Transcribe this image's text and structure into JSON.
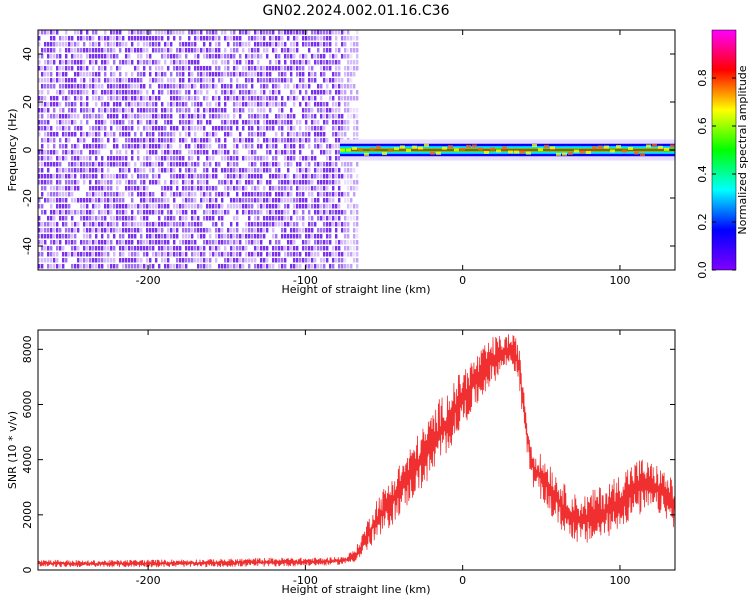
{
  "figure_title": "GN02.2024.002.01.16.C36",
  "colors": {
    "spectrogram_noise": "#7b2ff0",
    "spectrogram_noise_light": "#d6bcfa",
    "snr_line": "#f03030",
    "axis": "#000000"
  },
  "chart_data": [
    {
      "type": "heatmap",
      "title": "",
      "xlabel": "Height of straight line (km)",
      "ylabel": "Frequency (Hz)",
      "xlim": [
        -270,
        135
      ],
      "ylim": [
        -50,
        50
      ],
      "xticks": [
        -200,
        -100,
        0,
        100
      ],
      "yticks": [
        -40,
        -20,
        0,
        20,
        40
      ],
      "noise_region_x": [
        -270,
        -67
      ],
      "signal_region_x": [
        -78,
        135
      ],
      "signal_center_hz": 0,
      "signal_halfwidth_hz": 2,
      "grid": false,
      "colorbar": {
        "label": "Normalized spectral amplitude",
        "range": [
          0.0,
          1.0
        ],
        "ticks": [
          0.0,
          0.2,
          0.4,
          0.6,
          0.8
        ],
        "colormap": [
          "#ff00ff",
          "#ff0000",
          "#ffff00",
          "#00ff00",
          "#00ffff",
          "#0000ff",
          "#8000ff"
        ]
      }
    },
    {
      "type": "line",
      "title": "",
      "xlabel": "Height of straight line (km)",
      "ylabel": "SNR (10 * v/v)",
      "xlim": [
        -270,
        135
      ],
      "ylim": [
        0,
        8700
      ],
      "xticks": [
        -200,
        -100,
        0,
        100
      ],
      "yticks": [
        0,
        2000,
        4000,
        6000,
        8000
      ],
      "grid": false,
      "series": [
        {
          "x": [
            -270,
            -240,
            -200,
            -160,
            -120,
            -90,
            -75,
            -68,
            -65,
            -62,
            -58,
            -55,
            -50,
            -45,
            -40,
            -35,
            -30,
            -25,
            -20,
            -15,
            -10,
            -5,
            0,
            5,
            10,
            15,
            20,
            25,
            30,
            35,
            38,
            42,
            45,
            50,
            55,
            60,
            65,
            70,
            75,
            80,
            85,
            90,
            95,
            100,
            105,
            110,
            115,
            120,
            125,
            130,
            135
          ],
          "lower": [
            100,
            100,
            100,
            100,
            120,
            150,
            200,
            300,
            400,
            600,
            800,
            1000,
            1300,
            1600,
            2000,
            2300,
            2700,
            3000,
            3300,
            3800,
            4200,
            4700,
            5200,
            5600,
            6000,
            6500,
            6800,
            7200,
            7400,
            7000,
            5500,
            3800,
            3000,
            2500,
            2000,
            1600,
            1300,
            1100,
            900,
            900,
            1000,
            1100,
            1300,
            1500,
            1700,
            1900,
            2000,
            2100,
            2000,
            1800,
            1500
          ],
          "upper": [
            400,
            350,
            380,
            400,
            450,
            450,
            500,
            800,
            1200,
            1600,
            2200,
            2600,
            3000,
            3400,
            3900,
            4300,
            4800,
            5200,
            5700,
            6200,
            6500,
            6900,
            7300,
            7600,
            7900,
            8200,
            8500,
            8500,
            8600,
            8400,
            7200,
            5100,
            4400,
            4200,
            4000,
            3500,
            3100,
            2800,
            2700,
            2800,
            3000,
            3100,
            3300,
            3500,
            3800,
            4000,
            4100,
            3900,
            3800,
            3500,
            3200
          ]
        }
      ]
    }
  ]
}
